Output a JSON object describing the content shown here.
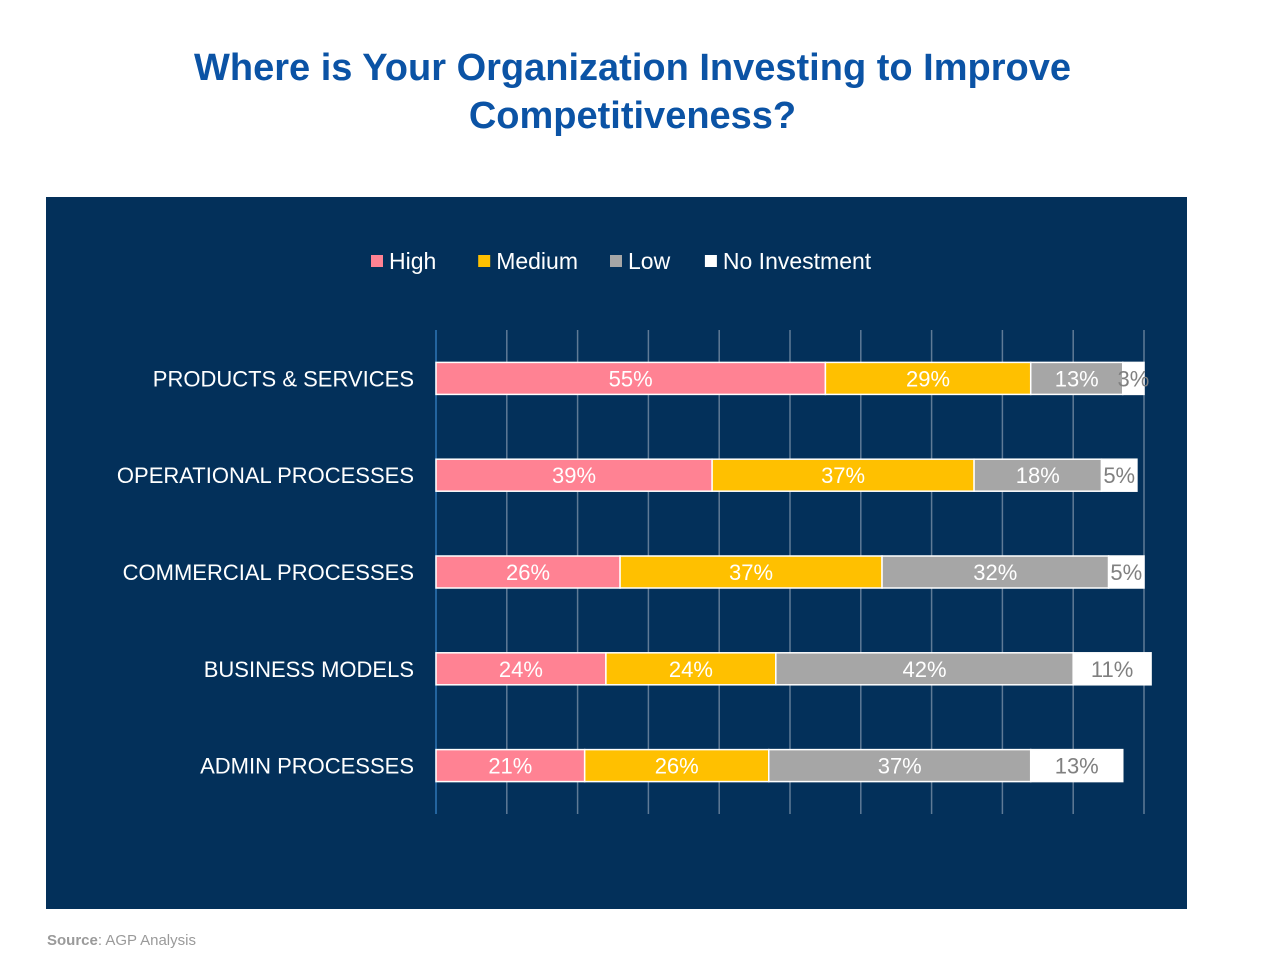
{
  "chart_data": {
    "type": "bar",
    "orientation": "horizontal",
    "stacked": true,
    "title": "Where is Your Organization Investing to Improve Competitiveness?",
    "title_lines": [
      "Where is Your Organization Investing to Improve",
      "Competitiveness?"
    ],
    "categories": [
      "PRODUCTS & SERVICES",
      "OPERATIONAL PROCESSES",
      "COMMERCIAL PROCESSES",
      "BUSINESS MODELS",
      "ADMIN PROCESSES"
    ],
    "series": [
      {
        "name": "High",
        "color": "#ff8293",
        "label_color": "#ffffff",
        "values": [
          55,
          39,
          26,
          24,
          21
        ],
        "labels": [
          "55%",
          "39%",
          "26%",
          "24%",
          "21%"
        ]
      },
      {
        "name": "Medium",
        "color": "#ffc000",
        "label_color": "#ffffff",
        "values": [
          29,
          37,
          37,
          24,
          26
        ],
        "labels": [
          "29%",
          "37%",
          "37%",
          "24%",
          "26%"
        ]
      },
      {
        "name": "Low",
        "color": "#a6a6a6",
        "label_color": "#ffffff",
        "values": [
          13,
          18,
          32,
          42,
          37
        ],
        "labels": [
          "13%",
          "18%",
          "32%",
          "42%",
          "37%"
        ]
      },
      {
        "name": "No Investment",
        "color": "#ffffff",
        "label_color": "#808080",
        "values": [
          3,
          5,
          5,
          11,
          13
        ],
        "labels": [
          "3%",
          "5%",
          "5%",
          "11%",
          "13%"
        ]
      }
    ],
    "xlim": [
      0,
      100
    ],
    "gridlines": [
      0,
      10,
      20,
      30,
      40,
      50,
      60,
      70,
      80,
      90,
      100
    ],
    "legend": "top-center",
    "background_color": "#03305a",
    "grid_color": "#5f7a96"
  },
  "source": {
    "label": "Source",
    "text": ": AGP Analysis"
  }
}
